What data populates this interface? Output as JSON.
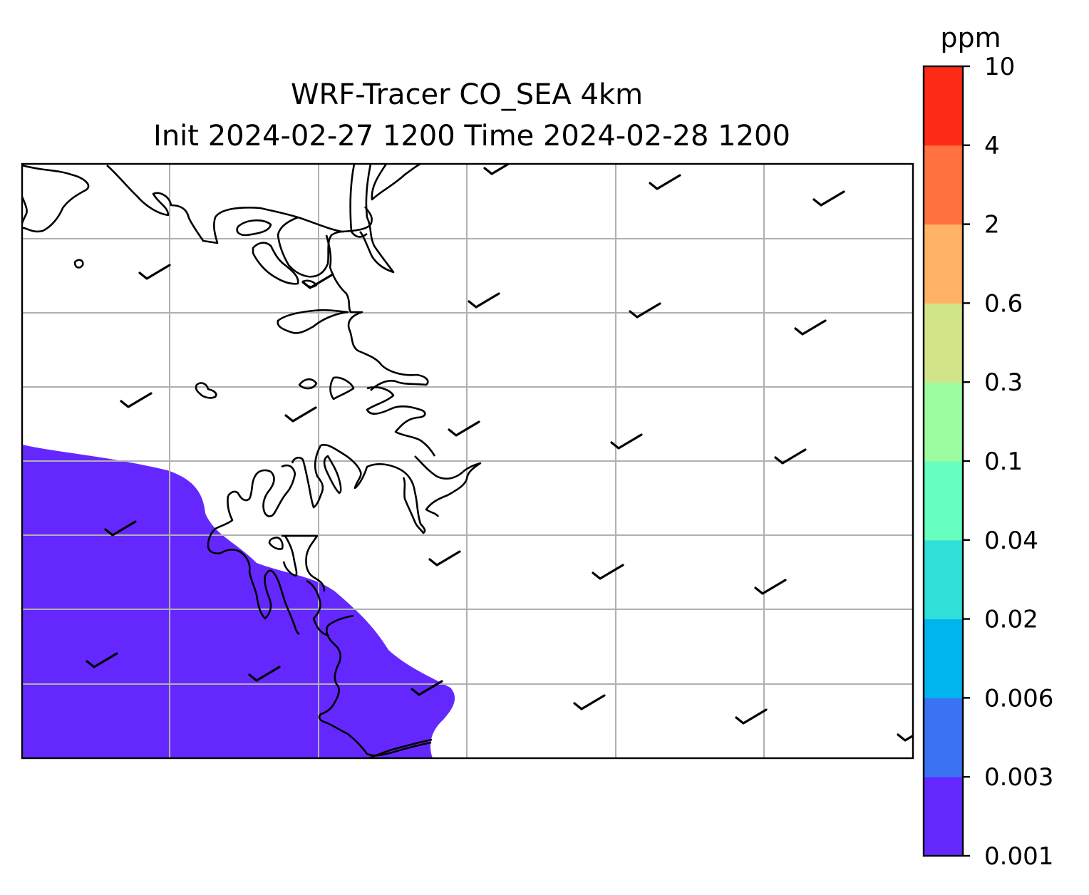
{
  "title": {
    "line1": "WRF-Tracer CO_SEA 4km",
    "line2": "Init 2024-02-27 1200 Time 2024-02-28 1200"
  },
  "colorbar": {
    "unit": "ppm",
    "levels": [
      "0.001",
      "0.003",
      "0.006",
      "0.02",
      "0.04",
      "0.1",
      "0.3",
      "0.6",
      "2",
      "4",
      "10"
    ],
    "colors": [
      "#6428ff",
      "#3a72f4",
      "#00b4ee",
      "#30e0d8",
      "#66ffc0",
      "#9cfda0",
      "#d1e48a",
      "#ffb266",
      "#ff713e",
      "#ff2a16"
    ]
  },
  "map": {
    "shaded_level_color": "#6428ff",
    "coastline_color": "#000000",
    "gridline_color": "#b0b0b0",
    "wind_barb_color": "#000000"
  }
}
